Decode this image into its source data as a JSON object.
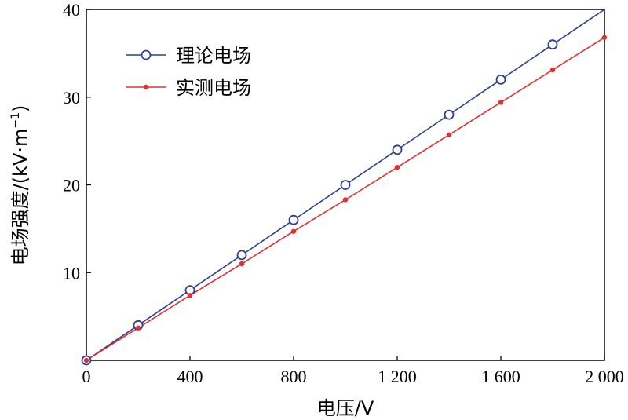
{
  "chart_data": {
    "type": "line",
    "x": [
      0,
      200,
      400,
      600,
      800,
      1000,
      1200,
      1400,
      1600,
      1800,
      2000
    ],
    "series": [
      {
        "name": "理论电场",
        "color": "#2f3f8f",
        "marker": "open-circle",
        "values": [
          0,
          4,
          8,
          12,
          16,
          20,
          24,
          28,
          32,
          36,
          40
        ],
        "marker_x": [
          0,
          200,
          400,
          600,
          800,
          1000,
          1200,
          1400,
          1600,
          1800
        ]
      },
      {
        "name": "实测电场",
        "color": "#e03030",
        "marker": "filled-dot",
        "values": [
          0,
          3.7,
          7.4,
          11.0,
          14.7,
          18.3,
          22.0,
          25.7,
          29.4,
          33.1,
          36.8
        ],
        "marker_x": [
          0,
          200,
          400,
          600,
          800,
          1000,
          1200,
          1400,
          1600,
          1800,
          2000
        ]
      }
    ],
    "xlabel": "电压/V",
    "ylabel_main": "电场强度/(kV·m",
    "ylabel_sup": "−1",
    "ylabel_close": ")",
    "xlim": [
      0,
      2000
    ],
    "ylim": [
      0,
      40
    ],
    "x_ticks": [
      0,
      400,
      800,
      1200,
      1600,
      2000
    ],
    "x_tick_labels": [
      "0",
      "400",
      "800",
      "1 200",
      "1 600",
      "2 000"
    ],
    "y_ticks": [
      10,
      20,
      30,
      40
    ],
    "y_tick_labels": [
      "10",
      "20",
      "30",
      "40"
    ],
    "grid": false,
    "legend_position": "top-left"
  }
}
